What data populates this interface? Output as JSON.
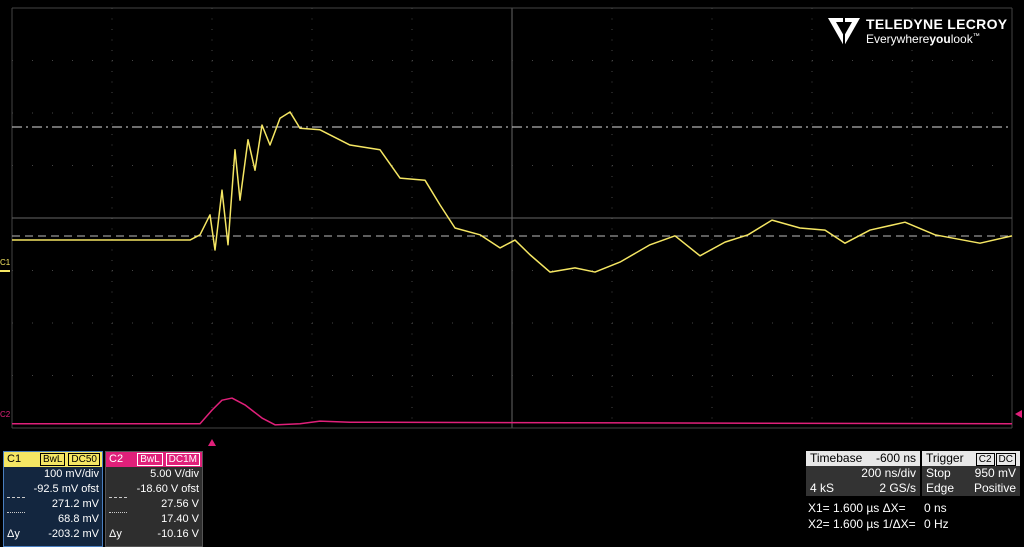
{
  "logo": {
    "brand": "TELEDYNE LECROY",
    "tagline_pre": "Everywhere",
    "tagline_bold": "you",
    "tagline_post": "look",
    "tm": "™"
  },
  "scope": {
    "type": "line",
    "xlim": [
      0,
      10
    ],
    "ylim": [
      -4,
      4
    ],
    "traces": [
      {
        "name": "C1",
        "color": "#f5e663",
        "x": [
          0,
          1.78,
          1.88,
          1.98,
          2.03,
          2.1,
          2.16,
          2.23,
          2.28,
          2.36,
          2.43,
          2.5,
          2.58,
          2.68,
          2.78,
          2.88,
          3.08,
          3.38,
          3.68,
          3.88,
          4.13,
          4.28,
          4.43,
          4.68,
          4.88,
          5.03,
          5.18,
          5.38,
          5.63,
          5.83,
          6.08,
          6.38,
          6.63,
          6.88,
          7.13,
          7.36,
          7.6,
          7.88,
          8.13,
          8.33,
          8.58,
          8.93,
          9.23,
          9.68,
          10.0
        ],
        "values": [
          -0.42,
          -0.42,
          -0.32,
          0.06,
          -0.61,
          0.53,
          -0.51,
          1.3,
          0.34,
          1.49,
          0.91,
          1.77,
          1.39,
          1.9,
          2.02,
          1.71,
          1.68,
          1.39,
          1.3,
          0.76,
          0.72,
          0.25,
          -0.19,
          -0.32,
          -0.57,
          -0.42,
          -0.7,
          -1.03,
          -0.95,
          -1.03,
          -0.84,
          -0.51,
          -0.34,
          -0.72,
          -0.46,
          -0.32,
          -0.04,
          -0.19,
          -0.23,
          -0.48,
          -0.23,
          -0.08,
          -0.32,
          -0.48,
          -0.34
        ]
      },
      {
        "name": "C2",
        "color": "#e0207a",
        "x": [
          0,
          1.88,
          2.0,
          2.1,
          2.2,
          2.33,
          2.5,
          2.63,
          2.88,
          3.08,
          3.38,
          10.0
        ],
        "values": [
          -3.92,
          -3.92,
          -3.66,
          -3.47,
          -3.43,
          -3.56,
          -3.81,
          -3.94,
          -3.92,
          -3.87,
          -3.89,
          -3.92
        ]
      }
    ]
  },
  "channels": [
    {
      "label": "C1",
      "bw": "BwL",
      "coupling": "DC50",
      "scale": "100 mV/div",
      "offset": "-92.5 mV ofst",
      "cursor1": "271.2 mV",
      "cursor2": "68.8 mV",
      "delta_label": "Δy",
      "delta": "-203.2 mV"
    },
    {
      "label": "C2",
      "bw": "BwL",
      "coupling": "DC1M",
      "scale": "5.00 V/div",
      "offset": "-18.60 V ofst",
      "cursor1": "27.56 V",
      "cursor2": "17.40 V",
      "delta_label": "Δy",
      "delta": "-10.16 V"
    }
  ],
  "timebase": {
    "label": "Timebase",
    "delay": "-600 ns",
    "scale": "200 ns/div",
    "samples": "4 kS",
    "rate": "2 GS/s"
  },
  "trigger": {
    "label": "Trigger",
    "source": "C2",
    "coupling": "DC",
    "mode": "Stop",
    "level": "950 mV",
    "type": "Edge",
    "slope": "Positive"
  },
  "cursors": {
    "x1": "X1= 1.600 µs ΔX=",
    "dx": "0 ns",
    "x2": "X2= 1.600 µs 1/ΔX=",
    "freq": "0 Hz"
  }
}
